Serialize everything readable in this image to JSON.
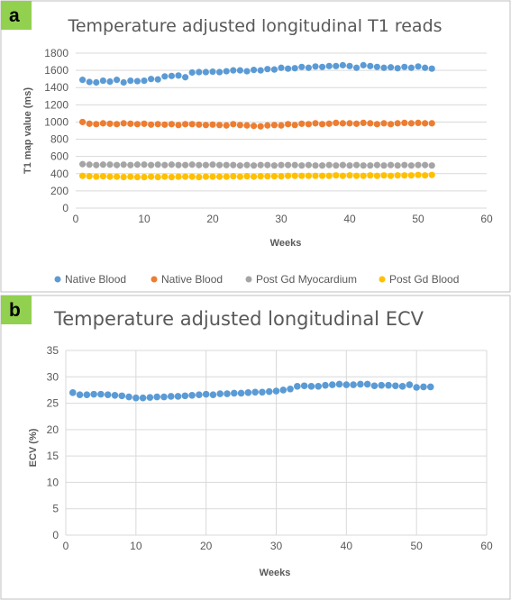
{
  "panels": [
    {
      "letter": "a"
    },
    {
      "letter": "b"
    }
  ],
  "chart_data": [
    {
      "type": "scatter",
      "title": "Temperature adjusted longitudinal T1 reads",
      "xlabel": "Weeks",
      "ylabel": "T1 map value (ms)",
      "xlim": [
        0,
        60
      ],
      "ylim": [
        0,
        1800
      ],
      "xticks": [
        0,
        10,
        20,
        30,
        40,
        50,
        60
      ],
      "yticks": [
        0,
        200,
        400,
        600,
        800,
        1000,
        1200,
        1400,
        1600,
        1800
      ],
      "grid": "horizontal",
      "legend": "bottom",
      "series": [
        {
          "name": "Native Blood",
          "color": "#5b9bd5",
          "x": [
            1,
            2,
            3,
            4,
            5,
            6,
            7,
            8,
            9,
            10,
            11,
            12,
            13,
            14,
            15,
            16,
            17,
            18,
            19,
            20,
            21,
            22,
            23,
            24,
            25,
            26,
            27,
            28,
            29,
            30,
            31,
            32,
            33,
            34,
            35,
            36,
            37,
            38,
            39,
            40,
            41,
            42,
            43,
            44,
            45,
            46,
            47,
            48,
            49,
            50,
            51,
            52
          ],
          "y": [
            1490,
            1465,
            1460,
            1480,
            1470,
            1490,
            1460,
            1480,
            1475,
            1480,
            1500,
            1495,
            1530,
            1535,
            1540,
            1520,
            1575,
            1580,
            1580,
            1585,
            1580,
            1590,
            1600,
            1600,
            1590,
            1605,
            1600,
            1615,
            1610,
            1630,
            1620,
            1625,
            1640,
            1630,
            1645,
            1640,
            1650,
            1650,
            1660,
            1650,
            1630,
            1660,
            1650,
            1640,
            1630,
            1635,
            1625,
            1640,
            1630,
            1645,
            1630,
            1620
          ]
        },
        {
          "name": "Native Blood",
          "color": "#ed7d31",
          "x": [
            1,
            2,
            3,
            4,
            5,
            6,
            7,
            8,
            9,
            10,
            11,
            12,
            13,
            14,
            15,
            16,
            17,
            18,
            19,
            20,
            21,
            22,
            23,
            24,
            25,
            26,
            27,
            28,
            29,
            30,
            31,
            32,
            33,
            34,
            35,
            36,
            37,
            38,
            39,
            40,
            41,
            42,
            43,
            44,
            45,
            46,
            47,
            48,
            49,
            50,
            51,
            52
          ],
          "y": [
            1000,
            980,
            975,
            985,
            980,
            975,
            985,
            980,
            975,
            980,
            970,
            975,
            970,
            975,
            965,
            975,
            975,
            970,
            965,
            970,
            965,
            960,
            975,
            965,
            960,
            955,
            950,
            960,
            965,
            960,
            975,
            965,
            980,
            975,
            985,
            975,
            980,
            990,
            985,
            985,
            980,
            990,
            985,
            975,
            985,
            975,
            985,
            990,
            985,
            990,
            985,
            985
          ]
        },
        {
          "name": "Post Gd Myocardium",
          "color": "#a5a5a5",
          "x": [
            1,
            2,
            3,
            4,
            5,
            6,
            7,
            8,
            9,
            10,
            11,
            12,
            13,
            14,
            15,
            16,
            17,
            18,
            19,
            20,
            21,
            22,
            23,
            24,
            25,
            26,
            27,
            28,
            29,
            30,
            31,
            32,
            33,
            34,
            35,
            36,
            37,
            38,
            39,
            40,
            41,
            42,
            43,
            44,
            45,
            46,
            47,
            48,
            49,
            50,
            51,
            52
          ],
          "y": [
            510,
            505,
            500,
            505,
            505,
            500,
            505,
            500,
            505,
            505,
            500,
            505,
            500,
            505,
            500,
            500,
            505,
            500,
            500,
            505,
            500,
            500,
            500,
            495,
            500,
            495,
            500,
            500,
            495,
            500,
            500,
            500,
            495,
            500,
            495,
            495,
            500,
            495,
            500,
            495,
            500,
            495,
            495,
            500,
            495,
            500,
            495,
            500,
            495,
            500,
            500,
            495
          ]
        },
        {
          "name": "Post Gd Blood",
          "color": "#ffc000",
          "x": [
            1,
            2,
            3,
            4,
            5,
            6,
            7,
            8,
            9,
            10,
            11,
            12,
            13,
            14,
            15,
            16,
            17,
            18,
            19,
            20,
            21,
            22,
            23,
            24,
            25,
            26,
            27,
            28,
            29,
            30,
            31,
            32,
            33,
            34,
            35,
            36,
            37,
            38,
            39,
            40,
            41,
            42,
            43,
            44,
            45,
            46,
            47,
            48,
            49,
            50,
            51,
            52
          ],
          "y": [
            375,
            370,
            365,
            370,
            365,
            365,
            360,
            365,
            360,
            360,
            365,
            360,
            365,
            360,
            365,
            365,
            365,
            360,
            365,
            365,
            365,
            365,
            370,
            365,
            370,
            365,
            370,
            370,
            370,
            370,
            375,
            375,
            375,
            375,
            375,
            375,
            375,
            380,
            375,
            380,
            375,
            375,
            380,
            375,
            380,
            375,
            380,
            380,
            380,
            385,
            380,
            385
          ]
        }
      ]
    },
    {
      "type": "scatter",
      "title": "Temperature adjusted longitudinal ECV",
      "xlabel": "Weeks",
      "ylabel": "ECV (%)",
      "xlim": [
        0,
        60
      ],
      "ylim": [
        0,
        35
      ],
      "xticks": [
        0,
        10,
        20,
        30,
        40,
        50,
        60
      ],
      "yticks": [
        0,
        5,
        10,
        15,
        20,
        25,
        30,
        35
      ],
      "grid": "both",
      "legend": "none",
      "series": [
        {
          "name": "",
          "color": "#5b9bd5",
          "x": [
            1,
            2,
            3,
            4,
            5,
            6,
            7,
            8,
            9,
            10,
            11,
            12,
            13,
            14,
            15,
            16,
            17,
            18,
            19,
            20,
            21,
            22,
            23,
            24,
            25,
            26,
            27,
            28,
            29,
            30,
            31,
            32,
            33,
            34,
            35,
            36,
            37,
            38,
            39,
            40,
            41,
            42,
            43,
            44,
            45,
            46,
            47,
            48,
            49,
            50,
            51,
            52
          ],
          "y": [
            27.0,
            26.6,
            26.6,
            26.7,
            26.7,
            26.6,
            26.5,
            26.4,
            26.2,
            26.0,
            26.0,
            26.1,
            26.2,
            26.2,
            26.3,
            26.3,
            26.4,
            26.5,
            26.6,
            26.7,
            26.6,
            26.8,
            26.8,
            26.9,
            26.9,
            27.0,
            27.1,
            27.1,
            27.2,
            27.3,
            27.5,
            27.7,
            28.2,
            28.3,
            28.2,
            28.2,
            28.4,
            28.5,
            28.6,
            28.5,
            28.5,
            28.6,
            28.6,
            28.3,
            28.4,
            28.4,
            28.3,
            28.2,
            28.5,
            28.0,
            28.1,
            28.1
          ]
        }
      ]
    }
  ]
}
